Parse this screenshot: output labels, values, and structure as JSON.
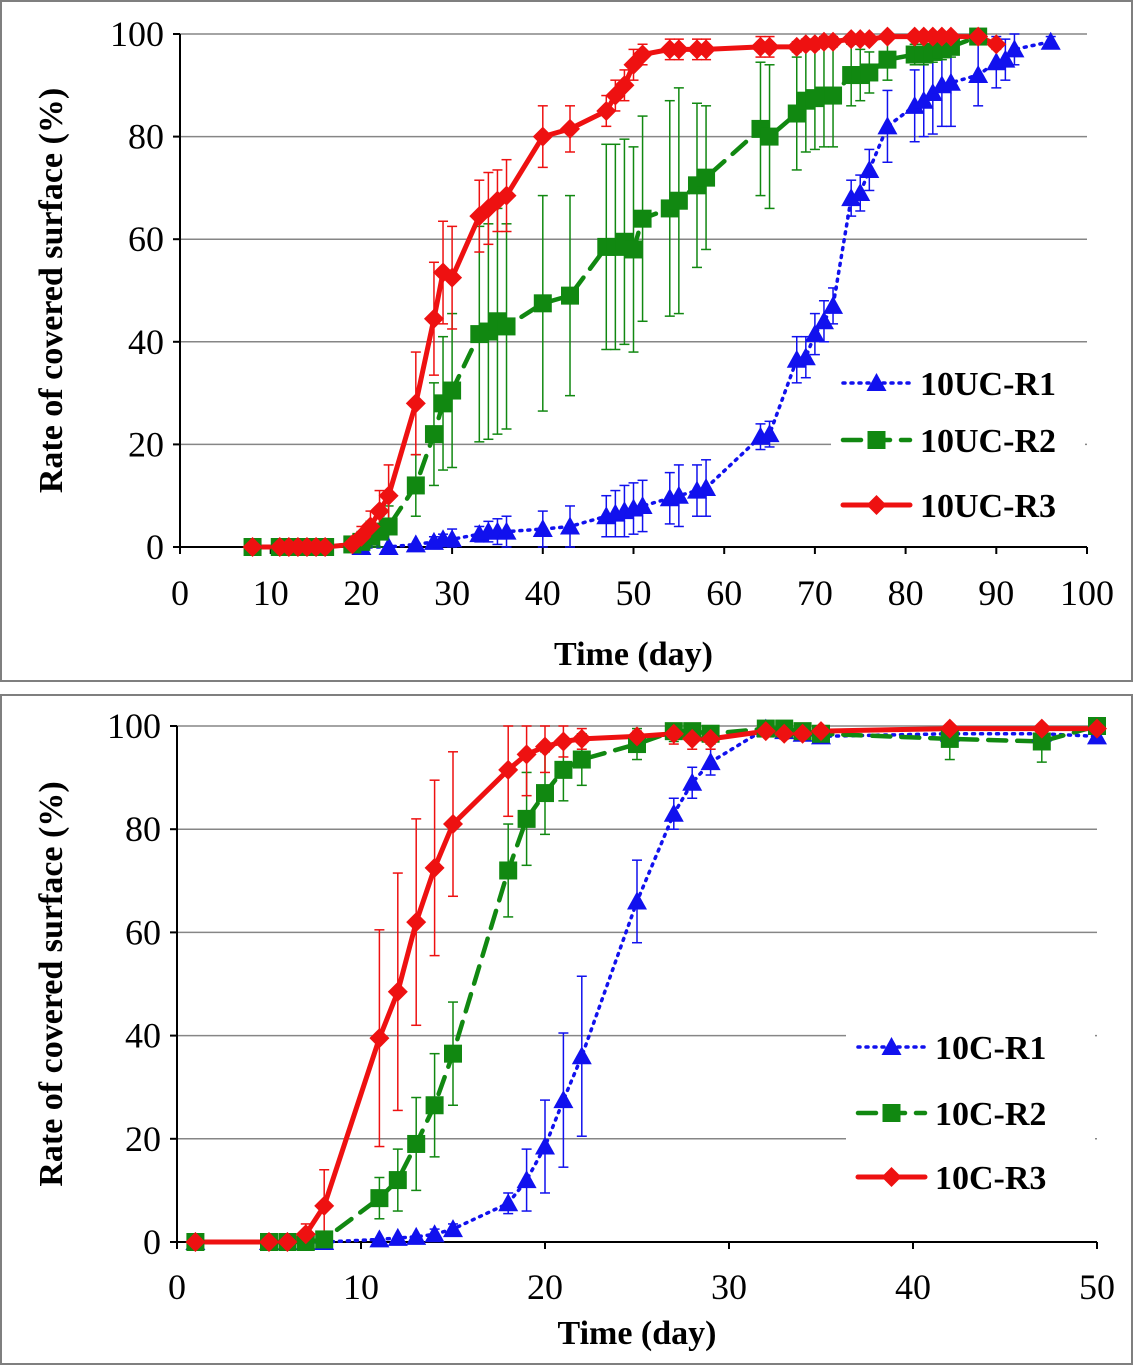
{
  "colors": {
    "r1": "#1111ee",
    "r2": "#118811",
    "r3": "#ee1111"
  },
  "chart_data": [
    {
      "type": "line",
      "xlabel": "Time (day)",
      "ylabel": "Rate of covered surface  (%)",
      "xlim": [
        0,
        100
      ],
      "ylim": [
        0,
        100
      ],
      "xticks": [
        "0",
        "10",
        "20",
        "30",
        "40",
        "50",
        "60",
        "70",
        "80",
        "90",
        "100"
      ],
      "yticks": [
        "0",
        "20",
        "40",
        "60",
        "80",
        "100"
      ],
      "grid": "horizontal",
      "legend": "right",
      "series": [
        {
          "name": "10UC-R1",
          "style": "dotted",
          "marker": "triangle",
          "color": "#1111ee",
          "x": [
            20,
            23,
            26,
            28,
            29,
            30,
            33,
            34,
            35,
            36,
            40,
            43,
            47,
            48,
            49,
            50,
            51,
            54,
            55,
            57,
            58,
            64,
            65,
            68,
            69,
            70,
            71,
            72,
            74,
            75,
            76,
            78,
            81,
            82,
            83,
            84,
            85,
            88,
            90,
            91,
            92,
            96
          ],
          "y": [
            0,
            0,
            0.5,
            1,
            1.5,
            1.5,
            2.5,
            3,
            3,
            3,
            3.5,
            4,
            6,
            6.5,
            7,
            7.5,
            8,
            9.5,
            10,
            11,
            11.5,
            21.5,
            22,
            36.5,
            37,
            41.5,
            44,
            47,
            68,
            69,
            73.5,
            82,
            86,
            87,
            88.5,
            90,
            90.5,
            92,
            94.5,
            95,
            97,
            98.5
          ],
          "err": [
            0.3,
            0.5,
            0.5,
            1,
            1,
            2,
            1.5,
            2,
            2.5,
            3,
            3.5,
            4,
            4,
            4.5,
            5,
            5,
            5,
            5,
            6,
            5,
            5.5,
            2.5,
            2.5,
            4.5,
            4,
            4,
            4,
            3.5,
            3.5,
            3.5,
            4,
            7,
            7,
            7,
            8,
            8,
            8.5,
            6,
            5,
            4,
            3,
            1
          ]
        },
        {
          "name": "10UC-R2",
          "style": "dashed",
          "marker": "square",
          "color": "#118811",
          "x": [
            8,
            11,
            12,
            13,
            14,
            15,
            16,
            19,
            20,
            21,
            22,
            23,
            26,
            28,
            29,
            30,
            33,
            34,
            35,
            36,
            40,
            43,
            47,
            48,
            49,
            50,
            51,
            54,
            55,
            57,
            58,
            64,
            65,
            68,
            69,
            70,
            71,
            72,
            74,
            75,
            76,
            78,
            81,
            82,
            83,
            84,
            85,
            88
          ],
          "y": [
            0,
            0,
            0,
            0,
            0,
            0,
            0,
            0.5,
            1,
            2,
            3,
            4,
            12,
            22,
            28,
            30.5,
            41.5,
            42,
            44,
            43,
            47.5,
            49,
            58.5,
            58.5,
            59.5,
            58,
            64,
            66,
            67.5,
            70.5,
            72,
            81.5,
            80,
            84.5,
            87,
            87.5,
            88,
            88,
            92,
            92,
            92.5,
            95,
            96,
            96,
            96.5,
            97,
            97.5,
            99.5
          ],
          "err": [
            0.3,
            0.3,
            0.3,
            0.3,
            0.3,
            0.3,
            0.3,
            1,
            2,
            3,
            3,
            4,
            6,
            10,
            13,
            15,
            21,
            21,
            22,
            20,
            21,
            19.5,
            20,
            20,
            20,
            20,
            20,
            21,
            22,
            16,
            14,
            13,
            14,
            11,
            10,
            10,
            10,
            10,
            6,
            5,
            4,
            4,
            2,
            2,
            2,
            2,
            2,
            0.5
          ]
        },
        {
          "name": "10UC-R3",
          "style": "solid",
          "marker": "diamond",
          "color": "#ee1111",
          "x": [
            8,
            11,
            12,
            13,
            14,
            15,
            16,
            19,
            20,
            21,
            22,
            23,
            26,
            28,
            29,
            30,
            33,
            34,
            35,
            36,
            40,
            43,
            47,
            48,
            49,
            50,
            51,
            54,
            55,
            57,
            58,
            64,
            65,
            68,
            69,
            70,
            71,
            72,
            74,
            75,
            76,
            78,
            81,
            82,
            83,
            84,
            85,
            88,
            90
          ],
          "y": [
            0,
            0,
            0,
            0,
            0,
            0,
            0,
            0.5,
            2,
            4,
            7,
            10,
            28,
            44.5,
            53.5,
            52.5,
            64.5,
            66,
            67.5,
            68.5,
            80,
            81.5,
            85,
            88,
            90,
            94,
            96,
            97,
            97,
            97,
            97,
            97.5,
            97.5,
            97.5,
            98,
            98,
            98.5,
            98.5,
            99,
            99,
            99,
            99.5,
            99.5,
            99.5,
            99.5,
            99.5,
            99.5,
            99.5,
            98
          ],
          "err": [
            0.3,
            0.3,
            0.3,
            0.3,
            0.3,
            0.3,
            0.3,
            1,
            2,
            3,
            4,
            6,
            10,
            11,
            10,
            10,
            7,
            7,
            6,
            7,
            6,
            4.5,
            3,
            3,
            3,
            3,
            2,
            2,
            2,
            2,
            2,
            2,
            2,
            1,
            1,
            1,
            1,
            1,
            0.5,
            0.5,
            0.5,
            0.5,
            0.5,
            0.5,
            0.5,
            0.5,
            0.5,
            0.5,
            1
          ]
        }
      ]
    },
    {
      "type": "line",
      "xlabel": "Time (day)",
      "ylabel": "Rate of covered surface  (%)",
      "xlim": [
        0,
        50
      ],
      "ylim": [
        0,
        100
      ],
      "xticks": [
        "0",
        "10",
        "20",
        "30",
        "40",
        "50"
      ],
      "yticks": [
        "0",
        "20",
        "40",
        "60",
        "80",
        "100"
      ],
      "grid": "horizontal",
      "legend": "right",
      "series": [
        {
          "name": "10C-R1",
          "style": "dotted",
          "marker": "triangle",
          "color": "#1111ee",
          "x": [
            1,
            5,
            6,
            7,
            8,
            11,
            12,
            13,
            14,
            15,
            18,
            19,
            20,
            21,
            22,
            25,
            27,
            28,
            29,
            32,
            33,
            34,
            35,
            42,
            47,
            50
          ],
          "y": [
            0,
            0,
            0,
            0,
            0,
            0.5,
            0.8,
            1,
            1.5,
            2.5,
            7.5,
            12,
            18.5,
            27.5,
            36,
            66,
            83,
            89,
            93,
            99.5,
            99,
            98.5,
            98,
            98.5,
            98.5,
            98
          ],
          "err": [
            0.3,
            0.3,
            0.3,
            0.3,
            0.3,
            0.5,
            0.5,
            0.5,
            1,
            1,
            2,
            6,
            9,
            13,
            15.5,
            8,
            3,
            3,
            2.5,
            1,
            1,
            1,
            1,
            1,
            1,
            1
          ]
        },
        {
          "name": "10C-R2",
          "style": "dashed",
          "marker": "square",
          "color": "#118811",
          "x": [
            1,
            5,
            6,
            7,
            8,
            11,
            12,
            13,
            14,
            15,
            18,
            19,
            20,
            21,
            22,
            25,
            27,
            28,
            29,
            32,
            33,
            34,
            35,
            42,
            47,
            50
          ],
          "y": [
            0,
            0,
            0,
            0,
            0.5,
            8.5,
            12,
            19,
            26.5,
            36.5,
            72,
            82,
            87,
            91.5,
            93.5,
            96.5,
            99,
            99,
            98.5,
            99.5,
            99.5,
            99,
            98.5,
            97.5,
            97,
            100
          ],
          "err": [
            0.3,
            0.3,
            0.3,
            0.3,
            1,
            4,
            6,
            9,
            10,
            10,
            9,
            9,
            8,
            6,
            5,
            3,
            2,
            2,
            2,
            1,
            1,
            1,
            1,
            4,
            4,
            1
          ]
        },
        {
          "name": "10C-R3",
          "style": "solid",
          "marker": "diamond",
          "color": "#ee1111",
          "x": [
            1,
            5,
            6,
            7,
            8,
            11,
            12,
            13,
            14,
            15,
            18,
            19,
            20,
            21,
            22,
            25,
            27,
            28,
            29,
            32,
            33,
            34,
            35,
            42,
            47,
            50
          ],
          "y": [
            0,
            0,
            0,
            1.5,
            7,
            39.5,
            48.5,
            62,
            72.5,
            81,
            91.5,
            94.5,
            96,
            97,
            97.5,
            98,
            98.5,
            97.5,
            97.5,
            99,
            98.5,
            98.5,
            99,
            99.5,
            99.5,
            99.5
          ],
          "err": [
            0.3,
            0.3,
            0.3,
            2,
            7,
            21,
            23,
            20,
            17,
            14,
            9,
            8,
            5,
            3,
            2,
            1,
            2,
            2,
            2,
            1,
            1,
            1,
            1,
            0.5,
            0.5,
            0.5
          ]
        }
      ]
    }
  ]
}
